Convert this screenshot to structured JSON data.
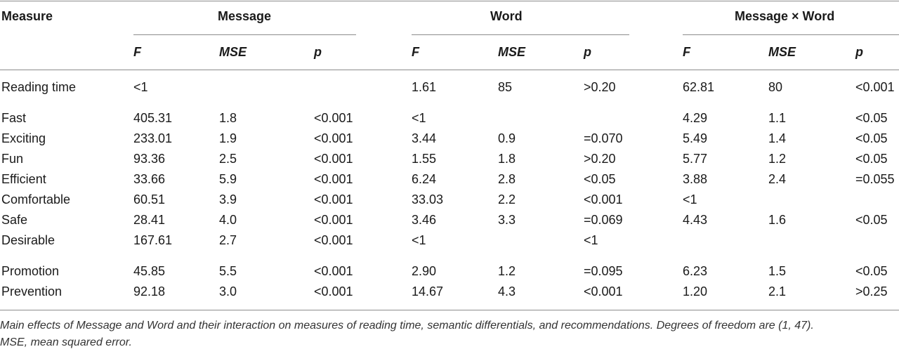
{
  "table": {
    "headers": {
      "measure": "Measure",
      "groups": [
        "Message",
        "Word",
        "Message × Word"
      ],
      "sub": [
        "F",
        "MSE",
        "p"
      ]
    },
    "rows": [
      {
        "label": "Reading time",
        "cells": [
          "<1",
          "",
          "",
          "1.61",
          "85",
          ">0.20",
          "62.81",
          "80",
          "<0.001"
        ]
      },
      {
        "label": "Fast",
        "cells": [
          "405.31",
          "1.8",
          "<0.001",
          "<1",
          "",
          "",
          "4.29",
          "1.1",
          "<0.05"
        ]
      },
      {
        "label": "Exciting",
        "cells": [
          "233.01",
          "1.9",
          "<0.001",
          "3.44",
          "0.9",
          "=0.070",
          "5.49",
          "1.4",
          "<0.05"
        ]
      },
      {
        "label": "Fun",
        "cells": [
          "93.36",
          "2.5",
          "<0.001",
          "1.55",
          "1.8",
          ">0.20",
          "5.77",
          "1.2",
          "<0.05"
        ]
      },
      {
        "label": "Efficient",
        "cells": [
          "33.66",
          "5.9",
          "<0.001",
          "6.24",
          "2.8",
          "<0.05",
          "3.88",
          "2.4",
          "=0.055"
        ]
      },
      {
        "label": "Comfortable",
        "cells": [
          "60.51",
          "3.9",
          "<0.001",
          "33.03",
          "2.2",
          "<0.001",
          "<1",
          "",
          ""
        ]
      },
      {
        "label": "Safe",
        "cells": [
          "28.41",
          "4.0",
          "<0.001",
          "3.46",
          "3.3",
          "=0.069",
          "4.43",
          "1.6",
          "<0.05"
        ]
      },
      {
        "label": "Desirable",
        "cells": [
          "167.61",
          "2.7",
          "<0.001",
          "<1",
          "",
          "<1",
          "",
          "",
          ""
        ]
      },
      {
        "label": "Promotion",
        "cells": [
          "45.85",
          "5.5",
          "<0.001",
          "2.90",
          "1.2",
          "=0.095",
          "6.23",
          "1.5",
          "<0.05"
        ]
      },
      {
        "label": "Prevention",
        "cells": [
          "92.18",
          "3.0",
          "<0.001",
          "14.67",
          "4.3",
          "<0.001",
          "1.20",
          "2.1",
          ">0.25"
        ]
      }
    ],
    "caption_line1": "Main effects of Message and Word and their interaction on measures of reading time, semantic differentials, and recommendations. Degrees of freedom are (1, 47).",
    "caption_line2": "MSE, mean squared error."
  }
}
